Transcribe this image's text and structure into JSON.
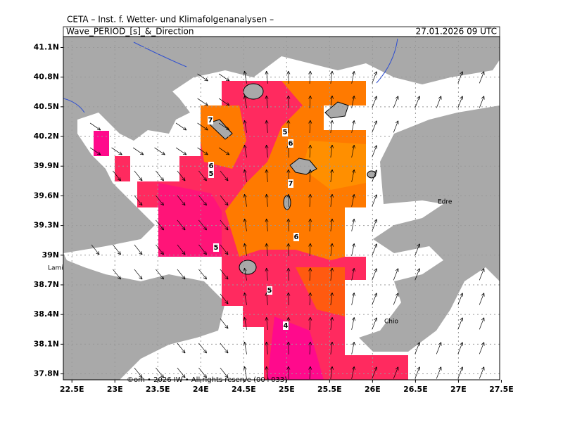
{
  "header": {
    "institute": "CETA – Inst. f. Wetter- und Klimafolgenanalysen –",
    "product": "Wave_PERIOD_[s]_&_Direction",
    "valid": "27.01.2026 09 UTC"
  },
  "map": {
    "lonlim": [
      22.4,
      27.48
    ],
    "latlim": [
      37.74,
      41.21
    ],
    "lon_ticks": [
      {
        "value": 22.5,
        "label": "22.5E"
      },
      {
        "value": 23,
        "label": "23E"
      },
      {
        "value": 23.5,
        "label": "23.5E"
      },
      {
        "value": 24,
        "label": "24E"
      },
      {
        "value": 24.5,
        "label": "24.5E"
      },
      {
        "value": 25,
        "label": "25E"
      },
      {
        "value": 25.5,
        "label": "25.5E"
      },
      {
        "value": 26,
        "label": "26E"
      },
      {
        "value": 26.5,
        "label": "26.5E"
      },
      {
        "value": 27,
        "label": "27E"
      },
      {
        "value": 27.5,
        "label": "27.5E"
      }
    ],
    "lat_ticks": [
      {
        "value": 41.1,
        "label": "41.1N"
      },
      {
        "value": 40.8,
        "label": "40.8N"
      },
      {
        "value": 40.5,
        "label": "40.5N"
      },
      {
        "value": 40.2,
        "label": "40.2N"
      },
      {
        "value": 39.9,
        "label": "39.9N"
      },
      {
        "value": 39.6,
        "label": "39.6N"
      },
      {
        "value": 39.3,
        "label": "39.3N"
      },
      {
        "value": 39,
        "label": "39N"
      },
      {
        "value": 38.7,
        "label": "38.7N"
      },
      {
        "value": 38.4,
        "label": "38.4N"
      },
      {
        "value": 38.1,
        "label": "38.1N"
      },
      {
        "value": 37.8,
        "label": "37.8N"
      }
    ],
    "contour_labels": [
      7,
      5,
      6,
      6,
      5,
      7,
      6,
      5,
      5,
      4
    ],
    "places": [
      "Lami",
      "Edre",
      "Chio"
    ],
    "copyright": "©om • 2026 IW • All rights reserve (00+033)"
  }
}
